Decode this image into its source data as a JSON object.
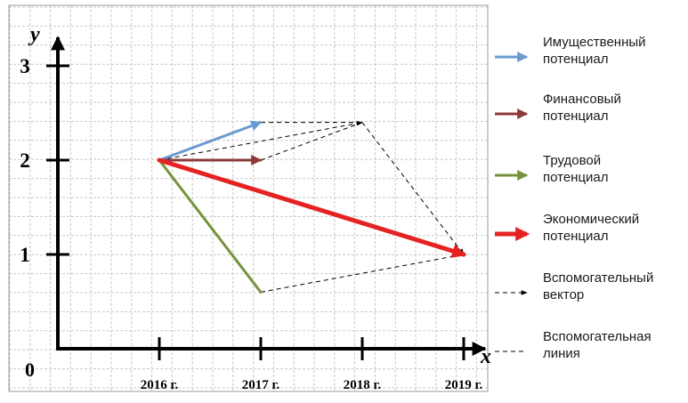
{
  "axes": {
    "x_name": "x",
    "y_name": "y",
    "origin_label": "0",
    "x_ticks": [
      "2016 г.",
      "2017 г.",
      "2018 г.",
      "2019 г."
    ],
    "y_ticks": [
      "1",
      "2",
      "3"
    ]
  },
  "colors": {
    "property": "#6a9bd1",
    "financial": "#8b3a3a",
    "labour": "#76933c",
    "economic": "#e52222",
    "auxiliary": "#000000",
    "grid": "#c9c9c9"
  },
  "vectors": [
    {
      "key": "property",
      "from": [
        0,
        2
      ],
      "to": [
        1,
        2.4
      ],
      "type": "arrow",
      "weight": 3
    },
    {
      "key": "financial",
      "from": [
        0,
        2
      ],
      "to": [
        1,
        2
      ],
      "type": "arrow",
      "weight": 3
    },
    {
      "key": "labour",
      "from": [
        0,
        2
      ],
      "to": [
        1,
        0.6
      ],
      "type": "line",
      "weight": 3
    },
    {
      "key": "economic",
      "from": [
        0,
        2
      ],
      "to": [
        3,
        1
      ],
      "type": "arrow",
      "weight": 5
    }
  ],
  "auxiliary_vectors": [
    {
      "from": [
        0,
        2
      ],
      "to": [
        2,
        2.4
      ]
    },
    {
      "from": [
        2,
        2.4
      ],
      "to": [
        3,
        1
      ]
    }
  ],
  "auxiliary_lines": [
    {
      "from": [
        1,
        2.4
      ],
      "to": [
        2,
        2.4
      ]
    },
    {
      "from": [
        1,
        2
      ],
      "to": [
        2,
        2.4
      ]
    },
    {
      "from": [
        1,
        0.6
      ],
      "to": [
        3,
        1
      ]
    }
  ],
  "legend": [
    {
      "key": "property",
      "label": "Имущественный потенциал",
      "lines": [
        "Имущественный",
        "потенциал"
      ],
      "style": "arrow"
    },
    {
      "key": "financial",
      "label": "Финансовый потенциал",
      "lines": [
        "Финансовый",
        "потенциал"
      ],
      "style": "arrow"
    },
    {
      "key": "labour",
      "label": "Трудовой потенциал",
      "lines": [
        "Трудовой",
        "потенциал"
      ],
      "style": "arrow"
    },
    {
      "key": "economic",
      "label": "Экономический потенциал",
      "lines": [
        "Экономический",
        "потенциал"
      ],
      "style": "arrow"
    },
    {
      "key": "aux-vector",
      "label": "Вспомогательный вектор",
      "lines": [
        "Вспомогательный",
        "вектор"
      ],
      "style": "dashed-arrow"
    },
    {
      "key": "aux-line",
      "label": "Вспомогательная линия",
      "lines": [
        "Вспомогательная",
        "линия"
      ],
      "style": "dashed"
    }
  ]
}
